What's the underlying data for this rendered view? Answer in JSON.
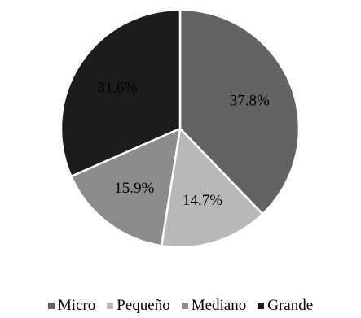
{
  "chart_data": {
    "type": "pie",
    "title": "",
    "categories": [
      "Micro",
      "Pequeño",
      "Mediano",
      "Grande"
    ],
    "values": [
      37.8,
      14.7,
      15.9,
      31.6
    ],
    "labels": [
      "37.8%",
      "14.7%",
      "15.9%",
      "31.6%"
    ],
    "colors": [
      "#636363",
      "#b8b8b8",
      "#8c8c8c",
      "#1c1c1c"
    ],
    "start_angle_deg": 0,
    "direction": "clockwise",
    "legend_position": "bottom",
    "slice_border_color": "#ffffff"
  }
}
